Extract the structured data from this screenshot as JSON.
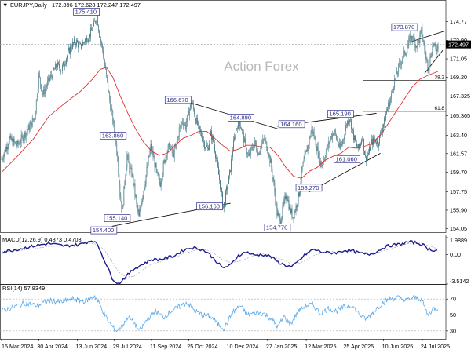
{
  "header": {
    "symbol": "EURJPY,Daily",
    "ohlc": "172.396 172.628 172.247 172.497"
  },
  "watermark": "Action Forex",
  "current_price_label": "172.497",
  "chart_data": [
    {
      "type": "candlestick",
      "title": "EURJPY,Daily",
      "x_ticks": [
        "15 Mar 2024",
        "30 Apr 2024",
        "13 Jun 2024",
        "29 Jul 2024",
        "11 Sep 2024",
        "25 Oct 2024",
        "10 Dec 2024",
        "27 Jan 2025",
        "12 Mar 2025",
        "25 Apr 2025",
        "10 Jun 2025",
        "24 Jul 2025"
      ],
      "y_ticks": [
        174.77,
        172.9,
        171.05,
        169.2,
        167.325,
        165.365,
        163.4,
        161.57,
        159.7,
        157.75,
        155.9,
        154.05
      ],
      "ylim": [
        153.7,
        176.0
      ],
      "last_price": 172.497,
      "price_path": [
        [
          0,
          161.0
        ],
        [
          10,
          163.0
        ],
        [
          20,
          162.4
        ],
        [
          30,
          163.6
        ],
        [
          35,
          164.2
        ],
        [
          42,
          165.2
        ],
        [
          47,
          169.4
        ],
        [
          52,
          167.5
        ],
        [
          58,
          168.6
        ],
        [
          63,
          169.4
        ],
        [
          70,
          170.4
        ],
        [
          76,
          170.0
        ],
        [
          82,
          171.2
        ],
        [
          88,
          172.3
        ],
        [
          94,
          172.8
        ],
        [
          100,
          172.2
        ],
        [
          106,
          173.0
        ],
        [
          112,
          173.5
        ],
        [
          117,
          174.4
        ],
        [
          121,
          175.41
        ],
        [
          124,
          173.5
        ],
        [
          128,
          172.0
        ],
        [
          132,
          169.8
        ],
        [
          136,
          167.4
        ],
        [
          140,
          165.4
        ],
        [
          143,
          163.86
        ],
        [
          147,
          161.2
        ],
        [
          150,
          157.5
        ],
        [
          153,
          155.8
        ],
        [
          156,
          158.9
        ],
        [
          159,
          161.4
        ],
        [
          162,
          160.0
        ],
        [
          165,
          159.6
        ],
        [
          168,
          158.2
        ],
        [
          171,
          156.4
        ],
        [
          174,
          155.14
        ],
        [
          177,
          156.8
        ],
        [
          181,
          158.4
        ],
        [
          185,
          160.4
        ],
        [
          189,
          162.3
        ],
        [
          193,
          161.0
        ],
        [
          197,
          159.3
        ],
        [
          201,
          158.6
        ],
        [
          205,
          160.3
        ],
        [
          209,
          161.7
        ],
        [
          213,
          162.4
        ],
        [
          217,
          161.4
        ],
        [
          221,
          162.2
        ],
        [
          225,
          164.0
        ],
        [
          229,
          164.9
        ],
        [
          233,
          164.3
        ],
        [
          237,
          165.8
        ],
        [
          241,
          166.67
        ],
        [
          245,
          165.3
        ],
        [
          249,
          164.2
        ],
        [
          253,
          163.4
        ],
        [
          257,
          162.5
        ],
        [
          261,
          162.0
        ],
        [
          265,
          163.5
        ],
        [
          269,
          162.6
        ],
        [
          273,
          160.5
        ],
        [
          277,
          158.4
        ],
        [
          281,
          156.16
        ],
        [
          285,
          157.8
        ],
        [
          289,
          159.5
        ],
        [
          293,
          162.0
        ],
        [
          297,
          164.0
        ],
        [
          301,
          164.89
        ],
        [
          305,
          163.8
        ],
        [
          309,
          162.3
        ],
        [
          313,
          161.2
        ],
        [
          317,
          162.0
        ],
        [
          321,
          162.6
        ],
        [
          325,
          161.6
        ],
        [
          329,
          162.4
        ],
        [
          333,
          163.0
        ],
        [
          337,
          162.0
        ],
        [
          341,
          160.6
        ],
        [
          345,
          158.4
        ],
        [
          349,
          155.6
        ],
        [
          353,
          154.77
        ],
        [
          357,
          156.3
        ],
        [
          361,
          157.6
        ],
        [
          365,
          156.0
        ],
        [
          369,
          155.3
        ],
        [
          373,
          156.2
        ],
        [
          377,
          157.6
        ],
        [
          381,
          160.1
        ],
        [
          385,
          161.4
        ],
        [
          389,
          162.6
        ],
        [
          393,
          164.16
        ],
        [
          397,
          163.0
        ],
        [
          401,
          161.6
        ],
        [
          405,
          160.4
        ],
        [
          409,
          161.3
        ],
        [
          413,
          162.2
        ],
        [
          417,
          163.2
        ],
        [
          421,
          163.9
        ],
        [
          425,
          162.8
        ],
        [
          429,
          162.0
        ],
        [
          433,
          163.2
        ],
        [
          437,
          164.6
        ],
        [
          441,
          165.19
        ],
        [
          445,
          163.6
        ],
        [
          449,
          162.4
        ],
        [
          453,
          162.0
        ],
        [
          457,
          163.4
        ],
        [
          461,
          161.06
        ],
        [
          465,
          161.6
        ],
        [
          469,
          162.7
        ],
        [
          473,
          163.0
        ],
        [
          477,
          162.6
        ],
        [
          481,
          163.8
        ],
        [
          485,
          164.8
        ],
        [
          489,
          166.2
        ],
        [
          493,
          167.0
        ],
        [
          497,
          168.6
        ],
        [
          501,
          169.6
        ],
        [
          505,
          170.6
        ],
        [
          509,
          171.3
        ],
        [
          513,
          172.0
        ],
        [
          517,
          172.9
        ],
        [
          521,
          173.3
        ],
        [
          525,
          172.4
        ],
        [
          529,
          172.9
        ],
        [
          532,
          173.87
        ],
        [
          535,
          172.4
        ],
        [
          538,
          171.0
        ],
        [
          541,
          170.2
        ],
        [
          544,
          171.5
        ],
        [
          547,
          172.7
        ],
        [
          550,
          171.8
        ],
        [
          553,
          172.497
        ]
      ],
      "ma_path": [
        [
          0,
          159.7
        ],
        [
          20,
          161.3
        ],
        [
          40,
          163.0
        ],
        [
          60,
          165.3
        ],
        [
          80,
          166.6
        ],
        [
          100,
          167.8
        ],
        [
          115,
          169.0
        ],
        [
          125,
          170.0
        ],
        [
          133,
          170.2
        ],
        [
          141,
          169.2
        ],
        [
          150,
          167.4
        ],
        [
          160,
          165.6
        ],
        [
          170,
          164.0
        ],
        [
          180,
          162.7
        ],
        [
          190,
          161.8
        ],
        [
          200,
          161.4
        ],
        [
          210,
          161.6
        ],
        [
          220,
          162.4
        ],
        [
          230,
          163.1
        ],
        [
          240,
          163.4
        ],
        [
          250,
          163.8
        ],
        [
          260,
          163.8
        ],
        [
          270,
          163.1
        ],
        [
          280,
          162.4
        ],
        [
          290,
          161.8
        ],
        [
          300,
          162.0
        ],
        [
          310,
          162.4
        ],
        [
          320,
          162.4
        ],
        [
          330,
          162.2
        ],
        [
          340,
          162.2
        ],
        [
          350,
          161.4
        ],
        [
          360,
          160.2
        ],
        [
          370,
          159.3
        ],
        [
          380,
          159.1
        ],
        [
          390,
          159.8
        ],
        [
          400,
          160.2
        ],
        [
          410,
          160.9
        ],
        [
          420,
          161.3
        ],
        [
          430,
          161.6
        ],
        [
          440,
          162.2
        ],
        [
          450,
          162.1
        ],
        [
          460,
          162.3
        ],
        [
          470,
          162.6
        ],
        [
          480,
          163.4
        ],
        [
          490,
          164.6
        ],
        [
          500,
          165.8
        ],
        [
          510,
          167.0
        ],
        [
          520,
          168.2
        ],
        [
          530,
          169.0
        ],
        [
          540,
          169.4
        ],
        [
          553,
          169.8
        ]
      ],
      "labels": [
        {
          "text": "175.410",
          "i": 121,
          "y": 175.41
        },
        {
          "text": "163.860",
          "i": 143,
          "y": 163.86
        },
        {
          "text": "154.400",
          "i": 153,
          "y": 154.4
        },
        {
          "text": "155.140",
          "i": 174,
          "y": 155.14
        },
        {
          "text": "166.670",
          "i": 241,
          "y": 166.67
        },
        {
          "text": "164.890",
          "i": 301,
          "y": 164.89
        },
        {
          "text": "156.160",
          "i": 281,
          "y": 156.16
        },
        {
          "text": "164.160",
          "i": 393,
          "y": 164.16
        },
        {
          "text": "154.770",
          "i": 353,
          "y": 154.77
        },
        {
          "text": "158.270",
          "i": 377,
          "y": 158.27
        },
        {
          "text": "165.190",
          "i": 441,
          "y": 165.19
        },
        {
          "text": "161.060",
          "i": 461,
          "y": 161.06
        },
        {
          "text": "173.870",
          "i": 532,
          "y": 173.87
        }
      ],
      "fib_levels": [
        {
          "label": "38.2",
          "value": 168.9
        },
        {
          "label": "61.8",
          "value": 165.8
        }
      ]
    },
    {
      "type": "line",
      "title": "MACD(12,26,9) 0.4873 0.4703",
      "y_ticks": [
        "1.9889",
        "0.00",
        "-3.5142"
      ],
      "ylim": [
        -3.5142,
        1.9889
      ]
    },
    {
      "type": "line",
      "title": "RSI(14) 57.8349",
      "y_ticks": [
        "70",
        "50",
        "30"
      ],
      "ylim": [
        20,
        85
      ]
    }
  ]
}
